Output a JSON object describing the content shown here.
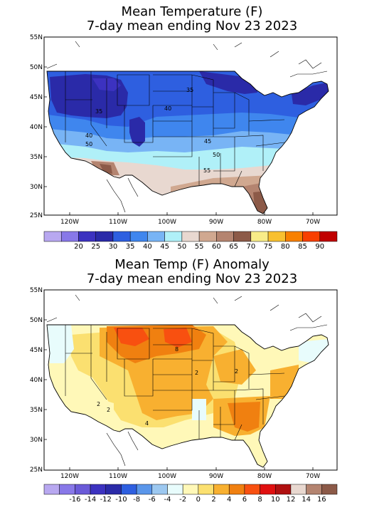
{
  "panel1": {
    "title_line1": "Mean Temperature (F)",
    "title_line2": "7-day mean ending Nov 23 2023",
    "lat_labels": [
      "55N",
      "50N",
      "45N",
      "40N",
      "35N",
      "30N",
      "25N"
    ],
    "lon_labels": [
      "120W",
      "110W",
      "100W",
      "90W",
      "80W",
      "70W"
    ],
    "contour_labels": [
      "35",
      "35",
      "40",
      "40",
      "45",
      "50",
      "55",
      "50"
    ],
    "colorbar": {
      "colors": [
        "#b8a8f0",
        "#8878e8",
        "#3c32c0",
        "#2a2aa8",
        "#2e5fe0",
        "#3f86ee",
        "#78b4f5",
        "#b0f0f8",
        "#e8d8d0",
        "#d0a890",
        "#b48470",
        "#8c5a48",
        "#f8ec88",
        "#f8c030",
        "#f88000",
        "#f84000",
        "#c00000"
      ],
      "labels": [
        "20",
        "25",
        "30",
        "35",
        "40",
        "45",
        "50",
        "55",
        "60",
        "65",
        "70",
        "75",
        "80",
        "85",
        "90"
      ]
    }
  },
  "panel2": {
    "title_line1": "Mean Temp (F) Anomaly",
    "title_line2": "7-day mean ending Nov 23 2023",
    "lat_labels": [
      "55N",
      "50N",
      "45N",
      "40N",
      "35N",
      "30N",
      "25N"
    ],
    "lon_labels": [
      "120W",
      "110W",
      "100W",
      "90W",
      "80W",
      "70W"
    ],
    "contour_labels": [
      "8",
      "2",
      "2",
      "2",
      "4",
      "2"
    ],
    "colorbar": {
      "colors": [
        "#b8a8f0",
        "#8878e8",
        "#6a5ad8",
        "#3c32c0",
        "#2a2aa8",
        "#2e5fe0",
        "#5a96ea",
        "#9cc8f0",
        "#e8fcfc",
        "#fff8b8",
        "#fbe070",
        "#f8b030",
        "#f08010",
        "#f85010",
        "#e01010",
        "#b01010",
        "#e8d8d0",
        "#b48470",
        "#8c5a48"
      ],
      "labels": [
        "-16",
        "-14",
        "-12",
        "-10",
        "-8",
        "-6",
        "-4",
        "-2",
        "0",
        "2",
        "4",
        "6",
        "8",
        "10",
        "12",
        "14",
        "16"
      ]
    }
  }
}
